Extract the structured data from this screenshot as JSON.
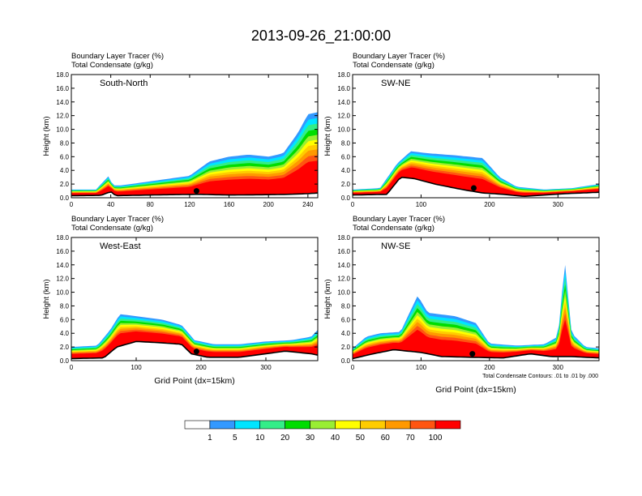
{
  "title": "2013-09-26_21:00:00",
  "subtitle_line1": "Boundary Layer Tracer   (%)",
  "subtitle_line2": "Total Condensate   (g/kg)",
  "ylabel": "Height (km)",
  "xlabel": "Grid Point (dx=15km)",
  "contour_note": "Total Condensate Contours: .01 to .01 by .000",
  "colorbar": {
    "labels": [
      "1",
      "5",
      "10",
      "20",
      "30",
      "40",
      "50",
      "60",
      "70",
      "100"
    ],
    "colors": [
      "#ffffff",
      "#3399ff",
      "#00e5ff",
      "#33ee88",
      "#00dd00",
      "#99ee33",
      "#ffff00",
      "#ffcc00",
      "#ff9900",
      "#ff5511",
      "#ff0000"
    ]
  },
  "chart_data": [
    {
      "type": "heatmap",
      "panel_title": "South-North",
      "xlim": [
        0,
        250
      ],
      "xticks": [
        "0",
        "40",
        "80",
        "120",
        "160",
        "200",
        "240"
      ],
      "ylim": [
        0,
        18
      ],
      "yticks": [
        "0.0",
        "2.0",
        "4.0",
        "6.0",
        "8.0",
        "10.0",
        "12.0",
        "14.0",
        "16.0",
        "18.0"
      ],
      "terrain": [
        [
          0,
          0.3
        ],
        [
          30,
          0.35
        ],
        [
          40,
          0.9
        ],
        [
          45,
          0.3
        ],
        [
          60,
          0.35
        ],
        [
          100,
          0.45
        ],
        [
          130,
          0.5
        ],
        [
          160,
          0.4
        ],
        [
          200,
          0.45
        ],
        [
          220,
          0.5
        ],
        [
          240,
          0.6
        ],
        [
          250,
          0.7
        ]
      ],
      "tracer_top": [
        [
          0,
          1.2
        ],
        [
          25,
          1.2
        ],
        [
          38,
          3.2
        ],
        [
          42,
          1.8
        ],
        [
          50,
          1.8
        ],
        [
          80,
          2.4
        ],
        [
          120,
          3.2
        ],
        [
          140,
          5.3
        ],
        [
          160,
          6.0
        ],
        [
          180,
          6.3
        ],
        [
          200,
          6.0
        ],
        [
          215,
          6.5
        ],
        [
          230,
          9.5
        ],
        [
          240,
          12.2
        ],
        [
          250,
          12.5
        ]
      ],
      "marker_x": 127
    },
    {
      "type": "heatmap",
      "panel_title": "SW-NE",
      "xlim": [
        0,
        360
      ],
      "xticks": [
        "0",
        "100",
        "200",
        "300"
      ],
      "ylim": [
        0,
        18
      ],
      "yticks": [
        "0.0",
        "2.0",
        "4.0",
        "6.0",
        "8.0",
        "10.0",
        "12.0",
        "14.0",
        "16.0",
        "18.0"
      ],
      "terrain": [
        [
          0,
          0.4
        ],
        [
          50,
          0.5
        ],
        [
          70,
          3.0
        ],
        [
          90,
          2.8
        ],
        [
          120,
          2.0
        ],
        [
          160,
          1.2
        ],
        [
          190,
          0.7
        ],
        [
          220,
          0.5
        ],
        [
          250,
          0.2
        ],
        [
          280,
          0.4
        ],
        [
          310,
          0.6
        ],
        [
          360,
          0.8
        ]
      ],
      "tracer_top": [
        [
          0,
          1.2
        ],
        [
          40,
          1.4
        ],
        [
          65,
          5.0
        ],
        [
          85,
          6.8
        ],
        [
          110,
          6.5
        ],
        [
          150,
          6.2
        ],
        [
          190,
          5.8
        ],
        [
          215,
          3.0
        ],
        [
          240,
          1.6
        ],
        [
          280,
          1.2
        ],
        [
          320,
          1.4
        ],
        [
          360,
          2.0
        ]
      ],
      "marker_x": 177
    },
    {
      "type": "heatmap",
      "panel_title": "West-East",
      "xlim": [
        0,
        380
      ],
      "xticks": [
        "0",
        "100",
        "200",
        "300"
      ],
      "ylim": [
        0,
        18
      ],
      "yticks": [
        "0.0",
        "2.0",
        "4.0",
        "6.0",
        "8.0",
        "10.0",
        "12.0",
        "14.0",
        "16.0",
        "18.0"
      ],
      "terrain": [
        [
          0,
          0.3
        ],
        [
          50,
          0.4
        ],
        [
          70,
          2.0
        ],
        [
          100,
          2.8
        ],
        [
          140,
          2.6
        ],
        [
          170,
          2.4
        ],
        [
          185,
          1.0
        ],
        [
          210,
          0.5
        ],
        [
          260,
          0.5
        ],
        [
          300,
          1.0
        ],
        [
          330,
          1.4
        ],
        [
          370,
          1.0
        ],
        [
          380,
          0.8
        ]
      ],
      "tracer_top": [
        [
          0,
          2.0
        ],
        [
          40,
          2.2
        ],
        [
          60,
          4.5
        ],
        [
          75,
          6.8
        ],
        [
          100,
          6.5
        ],
        [
          140,
          6.0
        ],
        [
          170,
          5.2
        ],
        [
          190,
          3.0
        ],
        [
          220,
          2.4
        ],
        [
          260,
          2.4
        ],
        [
          300,
          2.8
        ],
        [
          340,
          3.0
        ],
        [
          370,
          3.5
        ],
        [
          380,
          4.5
        ]
      ],
      "marker_x": 193
    },
    {
      "type": "heatmap",
      "panel_title": "NW-SE",
      "xlim": [
        0,
        360
      ],
      "xticks": [
        "0",
        "100",
        "200",
        "300"
      ],
      "ylim": [
        0,
        18
      ],
      "yticks": [
        "0.0",
        "2.0",
        "4.0",
        "6.0",
        "8.0",
        "10.0",
        "12.0",
        "14.0",
        "16.0",
        "18.0"
      ],
      "terrain": [
        [
          0,
          0.3
        ],
        [
          30,
          1.0
        ],
        [
          60,
          1.6
        ],
        [
          100,
          1.2
        ],
        [
          130,
          0.6
        ],
        [
          170,
          0.5
        ],
        [
          220,
          0.4
        ],
        [
          260,
          1.0
        ],
        [
          290,
          0.6
        ],
        [
          320,
          0.6
        ],
        [
          360,
          0.4
        ]
      ],
      "tracer_top": [
        [
          0,
          1.8
        ],
        [
          20,
          3.5
        ],
        [
          40,
          4.0
        ],
        [
          70,
          4.2
        ],
        [
          95,
          9.5
        ],
        [
          110,
          7.0
        ],
        [
          150,
          6.5
        ],
        [
          180,
          5.5
        ],
        [
          200,
          2.5
        ],
        [
          240,
          2.2
        ],
        [
          280,
          2.4
        ],
        [
          300,
          3.5
        ],
        [
          310,
          14.5
        ],
        [
          320,
          4.0
        ],
        [
          340,
          2.0
        ],
        [
          360,
          1.8
        ]
      ],
      "marker_x": 175
    }
  ]
}
